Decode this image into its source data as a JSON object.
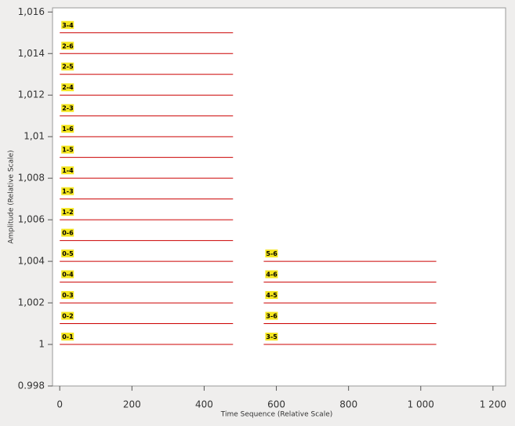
{
  "chart_data": {
    "type": "segments",
    "xlabel": "Time Sequence (Relative Scale)",
    "ylabel": "Amplitude (Relative Scale)",
    "xlim": [
      -20,
      1235
    ],
    "ylim": [
      0.998,
      1.0162
    ],
    "xticks": [
      0,
      200,
      400,
      600,
      800,
      {
        "value": 1000,
        "label": "1 000"
      },
      {
        "value": 1200,
        "label": "1 200"
      }
    ],
    "yticks": [
      0.998,
      1,
      {
        "value": 1.002,
        "label": "1,002"
      },
      {
        "value": 1.004,
        "label": "1,004"
      },
      {
        "value": 1.006,
        "label": "1,006"
      },
      {
        "value": 1.008,
        "label": "1,008"
      },
      {
        "value": 1.01,
        "label": "1,01"
      },
      {
        "value": 1.012,
        "label": "1,012"
      },
      {
        "value": 1.014,
        "label": "1,014"
      },
      {
        "value": 1.016,
        "label": "1,016"
      }
    ],
    "color": "#cc0000",
    "label_color": "#f5e61e",
    "segments": [
      {
        "label": "0-1",
        "x": [
          0,
          480
        ],
        "y": 1.0
      },
      {
        "label": "0-2",
        "x": [
          0,
          480
        ],
        "y": 1.001
      },
      {
        "label": "0-3",
        "x": [
          0,
          480
        ],
        "y": 1.002
      },
      {
        "label": "0-4",
        "x": [
          0,
          480
        ],
        "y": 1.003
      },
      {
        "label": "0-5",
        "x": [
          0,
          480
        ],
        "y": 1.004
      },
      {
        "label": "0-6",
        "x": [
          0,
          480
        ],
        "y": 1.005
      },
      {
        "label": "1-2",
        "x": [
          0,
          480
        ],
        "y": 1.006
      },
      {
        "label": "1-3",
        "x": [
          0,
          480
        ],
        "y": 1.007
      },
      {
        "label": "1-4",
        "x": [
          0,
          480
        ],
        "y": 1.008
      },
      {
        "label": "1-5",
        "x": [
          0,
          480
        ],
        "y": 1.009
      },
      {
        "label": "1-6",
        "x": [
          0,
          480
        ],
        "y": 1.01
      },
      {
        "label": "2-3",
        "x": [
          0,
          480
        ],
        "y": 1.011
      },
      {
        "label": "2-4",
        "x": [
          0,
          480
        ],
        "y": 1.012
      },
      {
        "label": "2-5",
        "x": [
          0,
          480
        ],
        "y": 1.013
      },
      {
        "label": "2-6",
        "x": [
          0,
          480
        ],
        "y": 1.014
      },
      {
        "label": "3-4",
        "x": [
          0,
          480
        ],
        "y": 1.015
      },
      {
        "label": "3-5",
        "x": [
          565,
          1043
        ],
        "y": 1.0
      },
      {
        "label": "3-6",
        "x": [
          565,
          1043
        ],
        "y": 1.001
      },
      {
        "label": "4-5",
        "x": [
          565,
          1043
        ],
        "y": 1.002
      },
      {
        "label": "4-6",
        "x": [
          565,
          1043
        ],
        "y": 1.003
      },
      {
        "label": "5-6",
        "x": [
          565,
          1043
        ],
        "y": 1.004
      }
    ]
  }
}
